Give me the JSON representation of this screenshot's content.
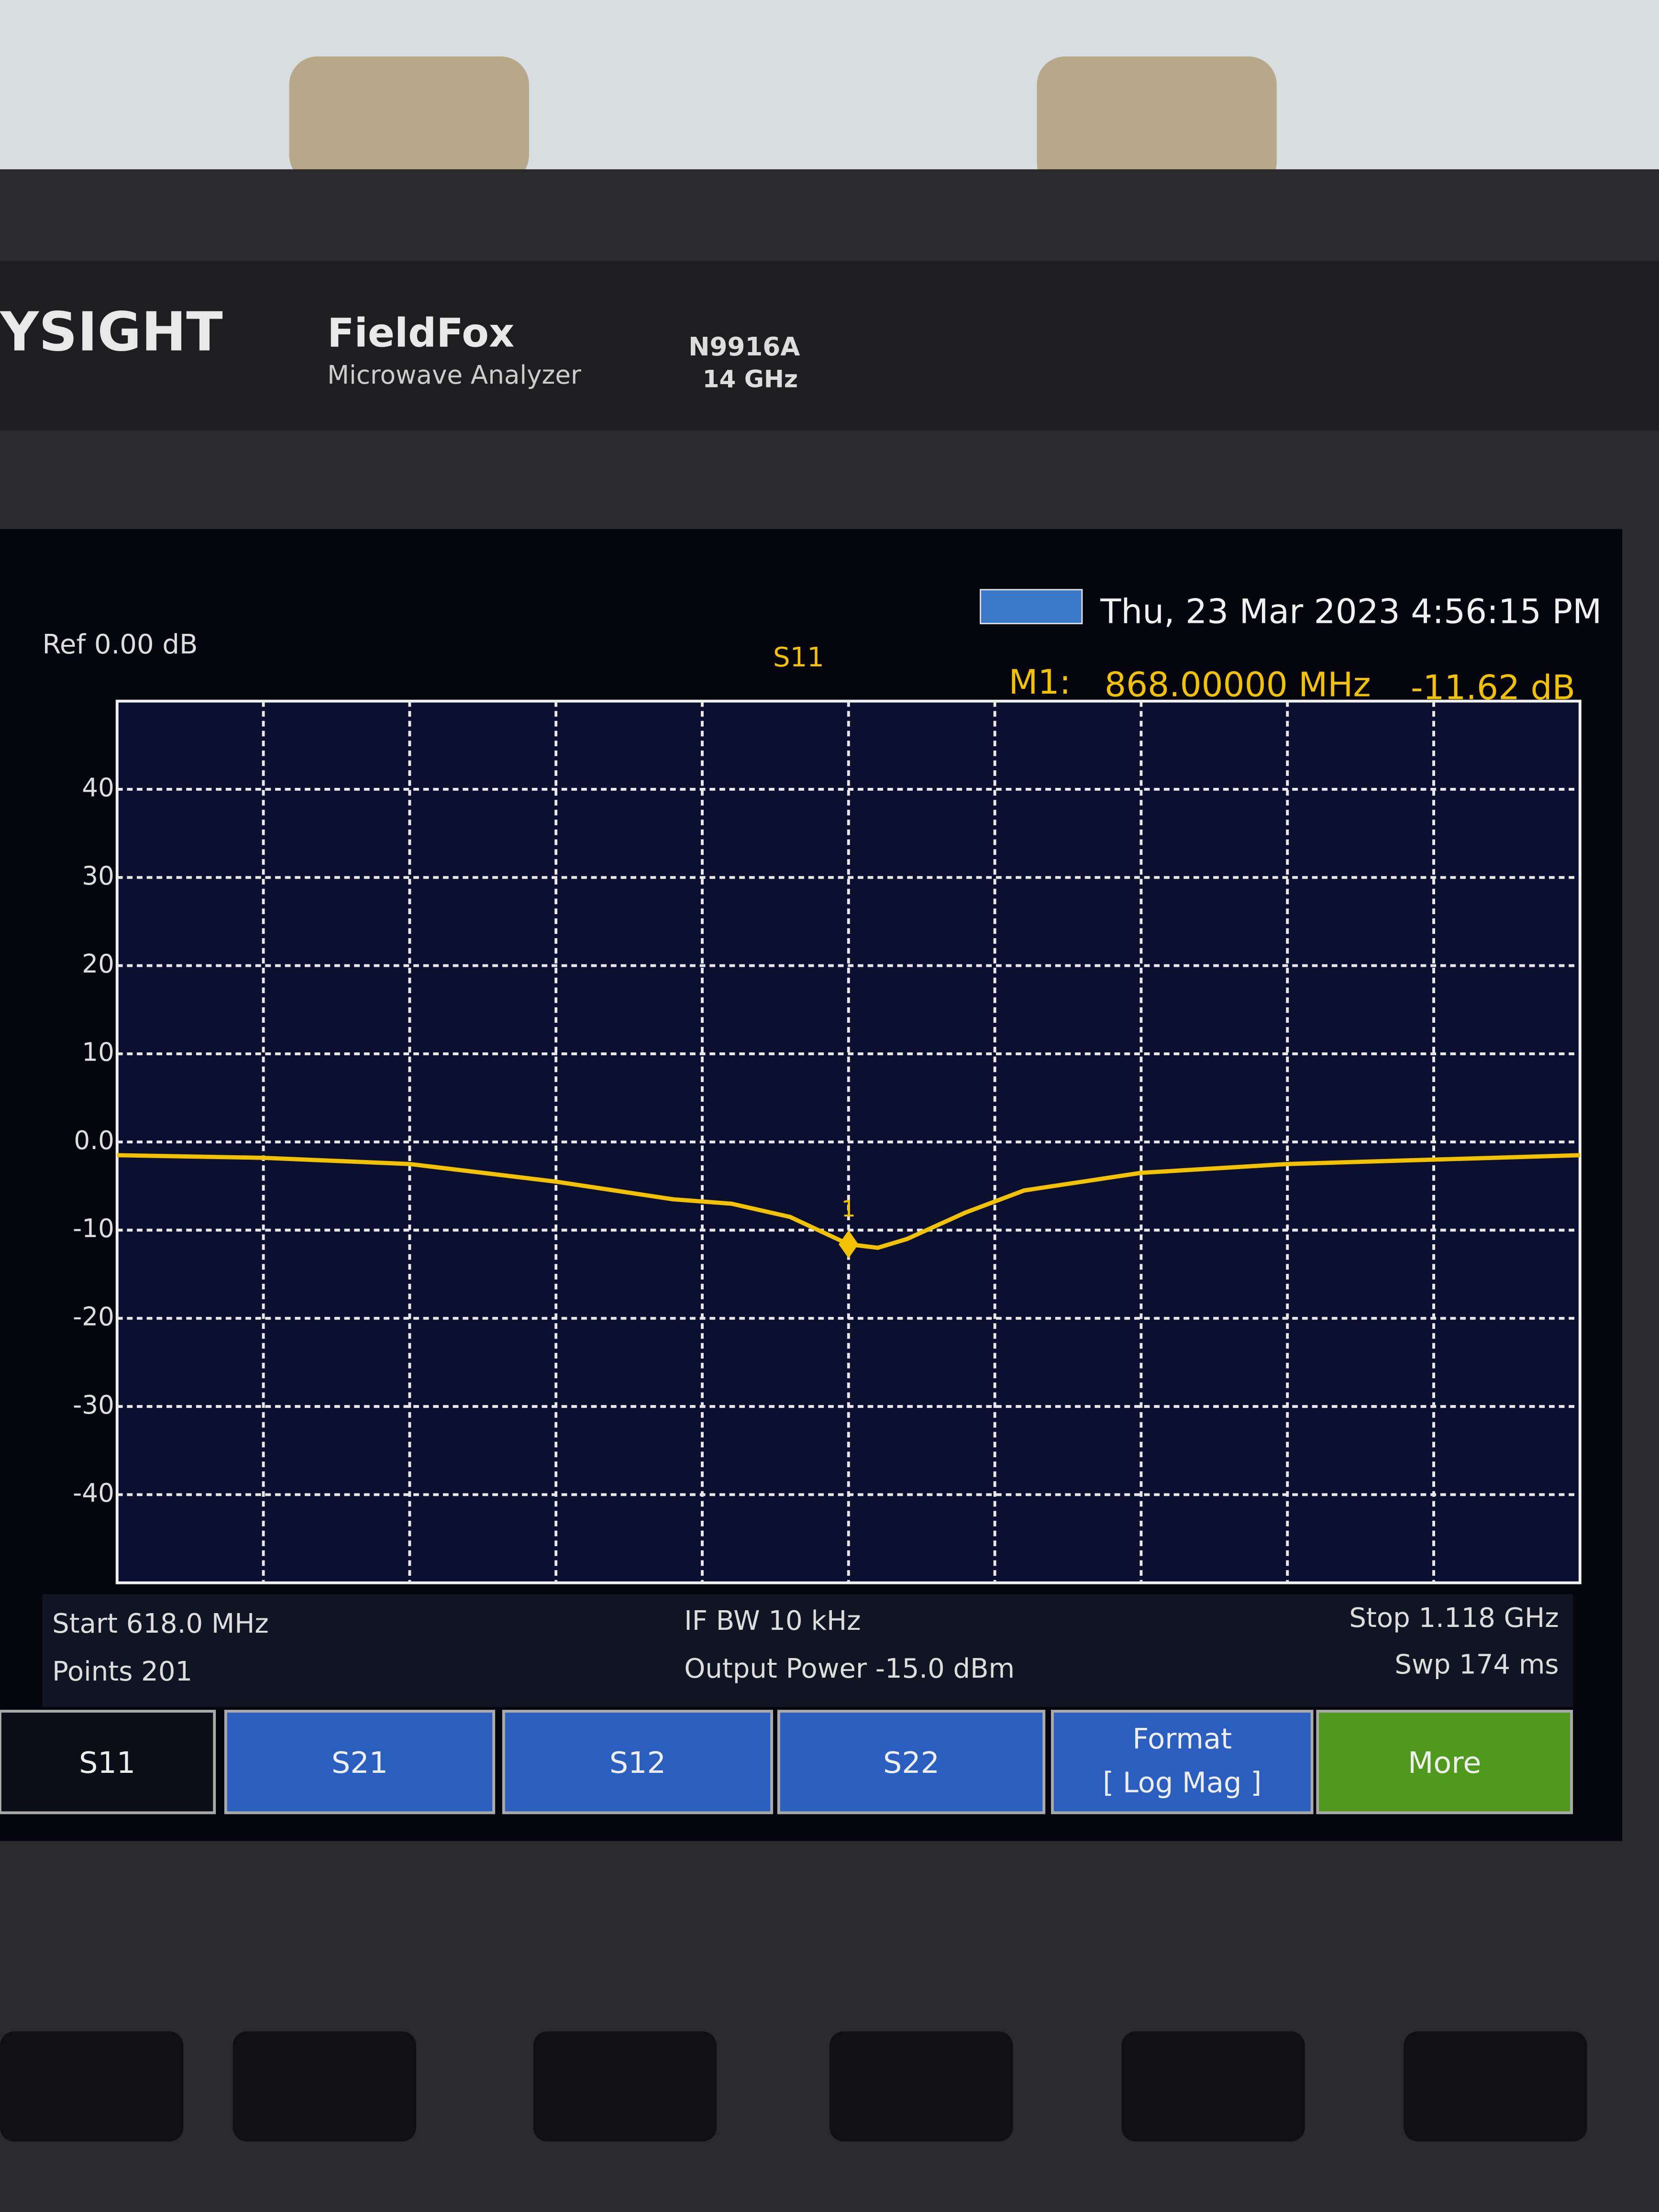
{
  "device": {
    "brand": "YSIGHT",
    "model": "FieldFox",
    "subtitle": "Microwave Analyzer",
    "part": "N9916A",
    "range": "14 GHz"
  },
  "status": {
    "datetime": "Thu, 23 Mar 2023 4:56:15 PM",
    "ref": "Ref 0.00 dB"
  },
  "marker": {
    "name": "M1:",
    "freq": "868.00000 MHz",
    "value": "-11.62 dB",
    "label": "1",
    "point": 7
  },
  "chart_data": {
    "type": "line",
    "title": "S11",
    "x": [
      618,
      668,
      718,
      768,
      808,
      828,
      848,
      868,
      878,
      888,
      908,
      928,
      968,
      1018,
      1068,
      1118
    ],
    "series": [
      {
        "name": "S11",
        "color": "#f2c200",
        "values": [
          -1.5,
          -1.8,
          -2.5,
          -4.5,
          -6.5,
          -7,
          -8.5,
          -11.6,
          -12,
          -11,
          -8,
          -5.5,
          -3.5,
          -2.5,
          -2,
          -1.5
        ]
      }
    ],
    "xlim": [
      618,
      1118
    ],
    "ylim": [
      -50,
      50
    ],
    "yticks": [
      40,
      30,
      20,
      10,
      {
        "value": 0,
        "label": "0.0"
      },
      -10,
      -20,
      -30,
      -40
    ],
    "grid": true
  },
  "footer": {
    "start": "Start 618.0 MHz",
    "points": "Points 201",
    "ifbw": "IF BW 10 kHz",
    "power": "Output Power -15.0 dBm",
    "stop": "Stop 1.118 GHz",
    "sweep": "Swp 174 ms"
  },
  "softkeys": [
    "S11",
    "S21",
    "S12",
    "S22",
    "Format",
    "[ Log Mag ]",
    "More"
  ]
}
